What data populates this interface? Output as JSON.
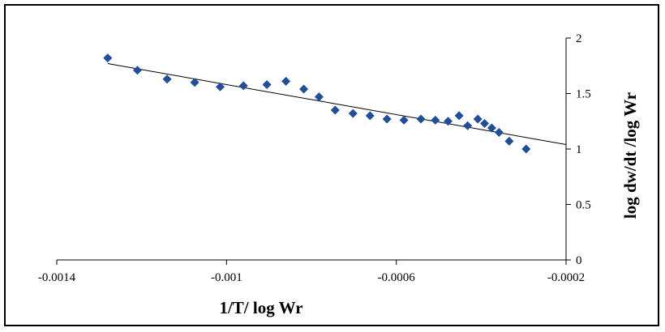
{
  "chart_data": {
    "type": "scatter",
    "title": "",
    "xlabel": "1/T/ log Wr",
    "ylabel": "log dw/dt /log Wr",
    "xlim": [
      -0.0014,
      -0.0002
    ],
    "ylim": [
      0,
      2
    ],
    "x_ticks": [
      "-0.0014",
      "-0.001",
      "-0.0006",
      "-0.0002"
    ],
    "x_tick_values": [
      -0.0014,
      -0.001,
      -0.0006,
      -0.0002
    ],
    "y_ticks": [
      "0",
      "0.5",
      "1",
      "1.5",
      "2"
    ],
    "y_tick_values": [
      0,
      0.5,
      1,
      1.5,
      2
    ],
    "y_axis_position": "right",
    "grid": false,
    "legend": "none",
    "marker_color": "#1F4E9A",
    "trendline_color": "#000000",
    "series": [
      {
        "x": [
          -0.00128,
          -0.00121,
          -0.00114,
          -0.001075,
          -0.001015,
          -0.00096,
          -0.000905,
          -0.00086,
          -0.000818,
          -0.000782,
          -0.000744,
          -0.000702,
          -0.000662,
          -0.000622,
          -0.000582,
          -0.000542,
          -0.000508,
          -0.000478,
          -0.000452,
          -0.000432,
          -0.000408,
          -0.000392,
          -0.000375,
          -0.000358,
          -0.000334,
          -0.000294
        ],
        "y": [
          1.82,
          1.71,
          1.63,
          1.6,
          1.56,
          1.57,
          1.58,
          1.61,
          1.54,
          1.47,
          1.35,
          1.32,
          1.3,
          1.27,
          1.26,
          1.27,
          1.26,
          1.25,
          1.3,
          1.21,
          1.27,
          1.23,
          1.19,
          1.15,
          1.07,
          1.0
        ]
      }
    ],
    "trendline": {
      "x": [
        -0.00128,
        -0.0002
      ],
      "y": [
        1.77,
        1.04
      ]
    }
  }
}
